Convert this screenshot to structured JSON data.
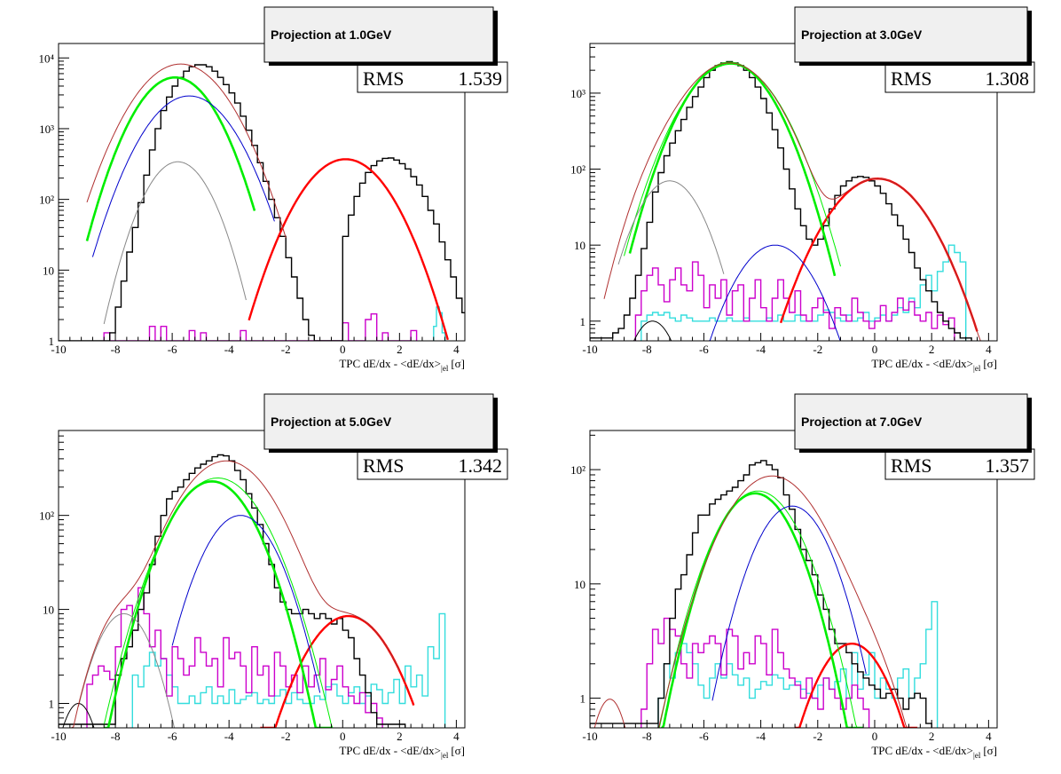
{
  "chart_data": [
    {
      "type": "line",
      "title": "Projection at 1.0GeV",
      "xlabel": "TPC dE/dx - <dE/dx>|el [σ]",
      "xlabel_main": "TPC dE/dx - <dE/dx>",
      "xlabel_sub": "el",
      "xlabel_unit": "[σ]",
      "stat_label": "RMS",
      "stat_value": "1.539",
      "yscale": "log",
      "xlim": [
        -10,
        4.3
      ],
      "ylim": [
        1,
        16000
      ],
      "xticks": [
        -10,
        -8,
        -6,
        -4,
        -2,
        0,
        2,
        4
      ],
      "yticks": [
        {
          "v": 1,
          "t": "1"
        },
        {
          "v": 10,
          "t": "10"
        },
        {
          "v": 100,
          "t": "10²"
        },
        {
          "v": 1000,
          "t": "10³"
        },
        {
          "v": 10000,
          "t": "10⁴"
        }
      ],
      "data_hist": {
        "lo": -10,
        "w": 0.2,
        "values": [
          1,
          1,
          1,
          1,
          1,
          1,
          1,
          1,
          1,
          1.3,
          3,
          7,
          18,
          40,
          90,
          220,
          500,
          1000,
          1800,
          2800,
          4000,
          5300,
          6500,
          7500,
          8000,
          8000,
          7500,
          6500,
          5300,
          4200,
          3200,
          2300,
          1500,
          950,
          580,
          330,
          180,
          100,
          55,
          30,
          15,
          8,
          4,
          2,
          1.2,
          1,
          1,
          1,
          1,
          1,
          30,
          60,
          110,
          170,
          240,
          300,
          350,
          380,
          385,
          360,
          320,
          270,
          210,
          160,
          110,
          70,
          45,
          25,
          14,
          8,
          4,
          2.5,
          1.5
        ]
      },
      "magenta_hist": {
        "lo": -8.4,
        "w": 0.2,
        "values": [
          1.3,
          1,
          1,
          1,
          1,
          1,
          1,
          1,
          1.6,
          1,
          1.6,
          1,
          1,
          1,
          1,
          1.4,
          1,
          1.3,
          1,
          1,
          1,
          1,
          1,
          1,
          1.4,
          1,
          1,
          1,
          1,
          1,
          1,
          1,
          1,
          1,
          1,
          1,
          1,
          1,
          1,
          1,
          1,
          1,
          1.8,
          1,
          1,
          1,
          2,
          2.4,
          1,
          1.3,
          1,
          1,
          1,
          1,
          1.4
        ]
      },
      "cyan_hist": {
        "lo": 3.2,
        "w": 0.1,
        "values": [
          1.6,
          3,
          2.5,
          1.3
        ]
      },
      "curves": [
        {
          "color": "#ff0000",
          "width": 2.4,
          "A": 370,
          "mu": 0.1,
          "sigma": 1.05,
          "x0": -3.3,
          "x1": 3.7
        },
        {
          "color": "#00ee00",
          "width": 2.6,
          "A": 5300,
          "mu": -5.9,
          "sigma": 0.95,
          "x0": -9.0,
          "x1": -3.1
        },
        {
          "color": "#0000cc",
          "width": 1,
          "A": 2900,
          "mu": -5.4,
          "sigma": 1.05,
          "x0": -8.8,
          "x1": -2.4
        },
        {
          "color": "#888888",
          "width": 1,
          "A": 340,
          "mu": -5.8,
          "sigma": 0.8,
          "x0": -8.4,
          "x1": -3.4
        },
        {
          "color": "#b03030",
          "width": 1,
          "A": 8200,
          "mu": -5.7,
          "sigma": 1.1,
          "x0": -9.0,
          "x1": -2.0
        }
      ]
    },
    {
      "type": "line",
      "title": "Projection at 3.0GeV",
      "xlabel": "TPC dE/dx - <dE/dx>|el [σ]",
      "xlabel_main": "TPC dE/dx - <dE/dx>",
      "xlabel_sub": "el",
      "xlabel_unit": "[σ]",
      "stat_label": "RMS",
      "stat_value": "1.308",
      "yscale": "log",
      "xlim": [
        -10,
        4.3
      ],
      "ylim": [
        0.55,
        4500
      ],
      "xticks": [
        -10,
        -8,
        -6,
        -4,
        -2,
        0,
        2,
        4
      ],
      "yticks": [
        {
          "v": 1,
          "t": "1"
        },
        {
          "v": 10,
          "t": "10"
        },
        {
          "v": 100,
          "t": "10²"
        },
        {
          "v": 1000,
          "t": "10³"
        }
      ],
      "data_hist": {
        "lo": -10,
        "w": 0.2,
        "values": [
          0.6,
          0.6,
          0.6,
          0.6,
          0.7,
          0.8,
          1.2,
          2,
          4,
          9,
          20,
          50,
          90,
          150,
          220,
          320,
          450,
          650,
          900,
          1200,
          1600,
          2000,
          2300,
          2500,
          2600,
          2500,
          2300,
          2000,
          1600,
          1200,
          850,
          550,
          330,
          190,
          100,
          55,
          30,
          18,
          12,
          10,
          12,
          18,
          30,
          45,
          60,
          70,
          78,
          80,
          78,
          70,
          60,
          48,
          35,
          25,
          18,
          12,
          8,
          5,
          3.5,
          2.5,
          1.8,
          1.3,
          1,
          0.8,
          0.7,
          0.6,
          0.6
        ]
      },
      "magenta_hist": {
        "lo": -8.4,
        "w": 0.2,
        "values": [
          1.2,
          2.5,
          4,
          5,
          3,
          1.8,
          3.5,
          5,
          3,
          2.5,
          6,
          4,
          1.5,
          3,
          2,
          3.5,
          1.2,
          2.5,
          3,
          1,
          2,
          3.5,
          1.5,
          1,
          2,
          3.5,
          2,
          1.3,
          2.5,
          1.2,
          1,
          1.5,
          2,
          1.3,
          0.8,
          1.5,
          1.2,
          1,
          2,
          1.3,
          1,
          0.8,
          1,
          1.6,
          1,
          1.3,
          2,
          1.4,
          1.8,
          1.2,
          1,
          1.3,
          0.8,
          1.2,
          0.9,
          1.1
        ]
      },
      "cyan_hist": {
        "lo": -8.2,
        "w": 0.2,
        "values": [
          1,
          1.2,
          1.3,
          1.2,
          1.3,
          1.1,
          1,
          1.2,
          1.1,
          1,
          1,
          1,
          1.1,
          1,
          1,
          1.1,
          1,
          1,
          1.1,
          1,
          1,
          1,
          1.1,
          1,
          1.2,
          1,
          1,
          1.2,
          1,
          1,
          1,
          1.2,
          1.4,
          1.3,
          1.1,
          1,
          1.2,
          1,
          1.1,
          1.3,
          1,
          1.1,
          1.2,
          1,
          1.2,
          1.5,
          1.3,
          2,
          1.5,
          3,
          4,
          2.5,
          4.5,
          6,
          10,
          8,
          6
        ]
      },
      "curves": [
        {
          "color": "#ff0000",
          "width": 2.4,
          "A": 75,
          "mu": 0.1,
          "sigma": 1.15,
          "x0": -3.3,
          "x1": 3.6
        },
        {
          "color": "#00ee00",
          "width": 2.6,
          "A": 2500,
          "mu": -5.1,
          "sigma": 1.03,
          "x0": -8.6,
          "x1": -1.4
        },
        {
          "color": "#00ee00",
          "width": 1,
          "A": 2400,
          "mu": -5.05,
          "sigma": 1.1,
          "x0": -8.8,
          "x1": -1.2
        },
        {
          "color": "#0000cc",
          "width": 1,
          "A": 10,
          "mu": -3.5,
          "sigma": 0.95,
          "x0": -5.9,
          "x1": -1.2
        },
        {
          "color": "#888888",
          "width": 1,
          "A": 70,
          "mu": -7.2,
          "sigma": 0.8,
          "x0": -9.0,
          "x1": -5.3
        },
        {
          "color": "#000000",
          "width": 1,
          "A": 1,
          "mu": -7.8,
          "sigma": 0.6,
          "x0": -9.1,
          "x1": -6.6
        },
        {
          "color": "#b03030",
          "width": 1,
          "A": 2500,
          "mu": -5.1,
          "sigma": 1.1,
          "x0": -9.5,
          "x1": 3.8,
          "extra": [
            {
              "A": 70,
              "mu": -7.2,
              "sigma": 0.8
            },
            {
              "A": 75,
              "mu": 0.1,
              "sigma": 1.15
            }
          ]
        }
      ]
    },
    {
      "type": "line",
      "title": "Projection at 5.0GeV",
      "xlabel": "TPC dE/dx - <dE/dx>|el [σ]",
      "xlabel_main": "TPC dE/dx - <dE/dx>",
      "xlabel_sub": "el",
      "xlabel_unit": "[σ]",
      "stat_label": "RMS",
      "stat_value": "1.342",
      "yscale": "log",
      "xlim": [
        -10,
        4.3
      ],
      "ylim": [
        0.55,
        800
      ],
      "xticks": [
        -10,
        -8,
        -6,
        -4,
        -2,
        0,
        2,
        4
      ],
      "yticks": [
        {
          "v": 1,
          "t": "1"
        },
        {
          "v": 10,
          "t": "10"
        },
        {
          "v": 100,
          "t": "10²"
        }
      ],
      "data_hist": {
        "lo": -10,
        "w": 0.2,
        "values": [
          0.6,
          0.6,
          0.6,
          0.6,
          0.6,
          0.6,
          0.6,
          0.6,
          0.6,
          0.6,
          2,
          3,
          4,
          6,
          10,
          15,
          30,
          60,
          100,
          150,
          180,
          200,
          240,
          280,
          320,
          350,
          380,
          420,
          440,
          430,
          380,
          300,
          240,
          170,
          120,
          80,
          50,
          30,
          17,
          12,
          10,
          9,
          9,
          10,
          9,
          8,
          9,
          8,
          7,
          8,
          6,
          5,
          3,
          2,
          1.3,
          0.8,
          0.6,
          0.6,
          0.6,
          0.6,
          0.6
        ]
      },
      "magenta_hist": {
        "lo": -9.0,
        "w": 0.2,
        "values": [
          1.6,
          2,
          2.5,
          2.2,
          1.8,
          4,
          10,
          11,
          6,
          17,
          9,
          4,
          6,
          3,
          1.2,
          4,
          3,
          2,
          2.5,
          5,
          3.5,
          2.5,
          3,
          1.5,
          5,
          3,
          3.5,
          2.5,
          1.3,
          4,
          2,
          2.5,
          1.2,
          3.5,
          2.5,
          1.5,
          2,
          1.3,
          2.5,
          1.5,
          2,
          3,
          1.4,
          1.8,
          2.5,
          1.5,
          1.2,
          1,
          1.3,
          0.8,
          1,
          0.7
        ]
      },
      "cyan_hist": {
        "lo": -7.4,
        "w": 0.2,
        "values": [
          2,
          1.5,
          2.5,
          3.5,
          2.5,
          3,
          2,
          1.5,
          1,
          1,
          1.2,
          1,
          1.3,
          1.5,
          1,
          1.2,
          1,
          1.4,
          1,
          1.1,
          1.2,
          1.3,
          1,
          1.1,
          1,
          1.2,
          1.4,
          1,
          1.3,
          1.1,
          1,
          1,
          1.2,
          1.1,
          1.5,
          1.6,
          1.2,
          1,
          1.3,
          1.5,
          1,
          1.2,
          1.6,
          1.4,
          1,
          1.3,
          1.8,
          1,
          2.5,
          1.5,
          2,
          1.2,
          4,
          3,
          9
        ]
      },
      "curves": [
        {
          "color": "#ff0000",
          "width": 2.4,
          "A": 8.5,
          "mu": 0.2,
          "sigma": 1.1,
          "x0": -2.9,
          "x1": 2.5
        },
        {
          "color": "#00ee00",
          "width": 2.6,
          "A": 230,
          "mu": -4.6,
          "sigma": 1.05,
          "x0": -8.4,
          "x1": -0.4
        },
        {
          "color": "#00ee00",
          "width": 1,
          "A": 250,
          "mu": -4.4,
          "sigma": 1.15,
          "x0": -8.4,
          "x1": -0.2
        },
        {
          "color": "#0000cc",
          "width": 1,
          "A": 100,
          "mu": -3.6,
          "sigma": 0.95,
          "x0": -6.0,
          "x1": -0.8
        },
        {
          "color": "#888888",
          "width": 1,
          "A": 9,
          "mu": -7.7,
          "sigma": 0.75,
          "x0": -9.3,
          "x1": -5.9
        },
        {
          "color": "#000000",
          "width": 1,
          "A": 1,
          "mu": -9.3,
          "sigma": 0.5,
          "x0": -10.0,
          "x1": -8.3
        },
        {
          "color": "#b03030",
          "width": 1,
          "A": 380,
          "mu": -4.1,
          "sigma": 1.2,
          "x0": -10.0,
          "x1": 2.0,
          "extra": [
            {
              "A": 9,
              "mu": -7.7,
              "sigma": 0.75
            },
            {
              "A": 8.5,
              "mu": 0.2,
              "sigma": 1.1
            }
          ]
        }
      ]
    },
    {
      "type": "line",
      "title": "Projection at 7.0GeV",
      "xlabel": "TPC dE/dx - <dE/dx>|el [σ]",
      "xlabel_main": "TPC dE/dx - <dE/dx>",
      "xlabel_sub": "el",
      "xlabel_unit": "[σ]",
      "stat_label": "RMS",
      "stat_value": "1.357",
      "yscale": "log",
      "xlim": [
        -10,
        4.3
      ],
      "ylim": [
        0.55,
        220
      ],
      "xticks": [
        -10,
        -8,
        -6,
        -4,
        -2,
        0,
        2,
        4
      ],
      "yticks": [
        {
          "v": 1,
          "t": "1"
        },
        {
          "v": 10,
          "t": "10"
        },
        {
          "v": 100,
          "t": "10²"
        }
      ],
      "data_hist": {
        "lo": -10,
        "w": 0.2,
        "values": [
          0.6,
          0.6,
          0.6,
          0.6,
          0.6,
          0.6,
          0.6,
          0.6,
          0.6,
          0.6,
          0.6,
          0.6,
          1,
          2,
          5,
          9,
          12,
          18,
          28,
          40,
          40,
          50,
          55,
          60,
          65,
          70,
          80,
          90,
          110,
          115,
          120,
          110,
          100,
          85,
          60,
          45,
          30,
          20,
          16,
          12,
          8,
          6,
          4,
          3,
          3,
          2.5,
          2,
          1.7,
          1.5,
          1.3,
          1.2,
          1,
          1.1,
          1.2,
          1,
          0.8,
          1,
          1.1,
          1,
          0.6
        ]
      },
      "magenta_hist": {
        "lo": -8.2,
        "w": 0.2,
        "values": [
          0.8,
          2,
          4,
          3,
          5,
          4,
          3.5,
          2,
          1.5,
          3,
          2.5,
          3,
          3.5,
          3,
          1.6,
          4,
          3.5,
          1.8,
          2.5,
          2,
          3.5,
          3,
          1.6,
          4,
          2.5,
          1.8,
          1.5,
          1.3,
          1,
          1.5,
          1,
          0.8,
          1.5,
          1.2,
          1,
          0.8,
          1,
          1.3,
          1,
          0.8
        ]
      },
      "cyan_hist": {
        "lo": -7.6,
        "w": 0.2,
        "values": [
          1,
          2,
          1.5,
          2.5,
          3,
          2.5,
          2,
          1.3,
          1,
          1.5,
          2,
          1.5,
          2,
          1.6,
          1.3,
          1.5,
          1,
          1.2,
          1.4,
          1.3,
          1.6,
          1.5,
          1.2,
          1.3,
          1.4,
          1.2,
          1.1,
          1,
          1.3,
          1.5,
          1.2,
          1.4,
          1.8,
          1,
          2.5,
          1.2,
          1.6,
          2.5,
          1,
          1.5,
          1.2,
          1,
          1.5,
          1.8,
          1,
          1.5,
          2,
          4,
          7
        ]
      },
      "curves": [
        {
          "color": "#ff0000",
          "width": 2.4,
          "A": 3,
          "mu": -0.8,
          "sigma": 1.0,
          "x0": -2.8,
          "x1": 1.5
        },
        {
          "color": "#00ee00",
          "width": 2.6,
          "A": 62,
          "mu": -4.2,
          "sigma": 1.05,
          "x0": -7.5,
          "x1": -0.4
        },
        {
          "color": "#00ee00",
          "width": 1,
          "A": 65,
          "mu": -4.1,
          "sigma": 1.12,
          "x0": -7.6,
          "x1": -0.2
        },
        {
          "color": "#0000cc",
          "width": 1,
          "A": 48,
          "mu": -2.9,
          "sigma": 1.0,
          "x0": -5.7,
          "x1": -0.3
        },
        {
          "color": "#b03030",
          "width": 1,
          "A": 0.98,
          "mu": -9.3,
          "sigma": 0.5,
          "x0": -10.0,
          "x1": -8.5
        },
        {
          "color": "#b03030",
          "width": 1,
          "A": 88,
          "mu": -3.6,
          "sigma": 1.25,
          "x0": -7.8,
          "x1": 1.2,
          "extra": [
            {
              "A": 3,
              "mu": -0.8,
              "sigma": 1.0
            }
          ]
        }
      ]
    }
  ]
}
